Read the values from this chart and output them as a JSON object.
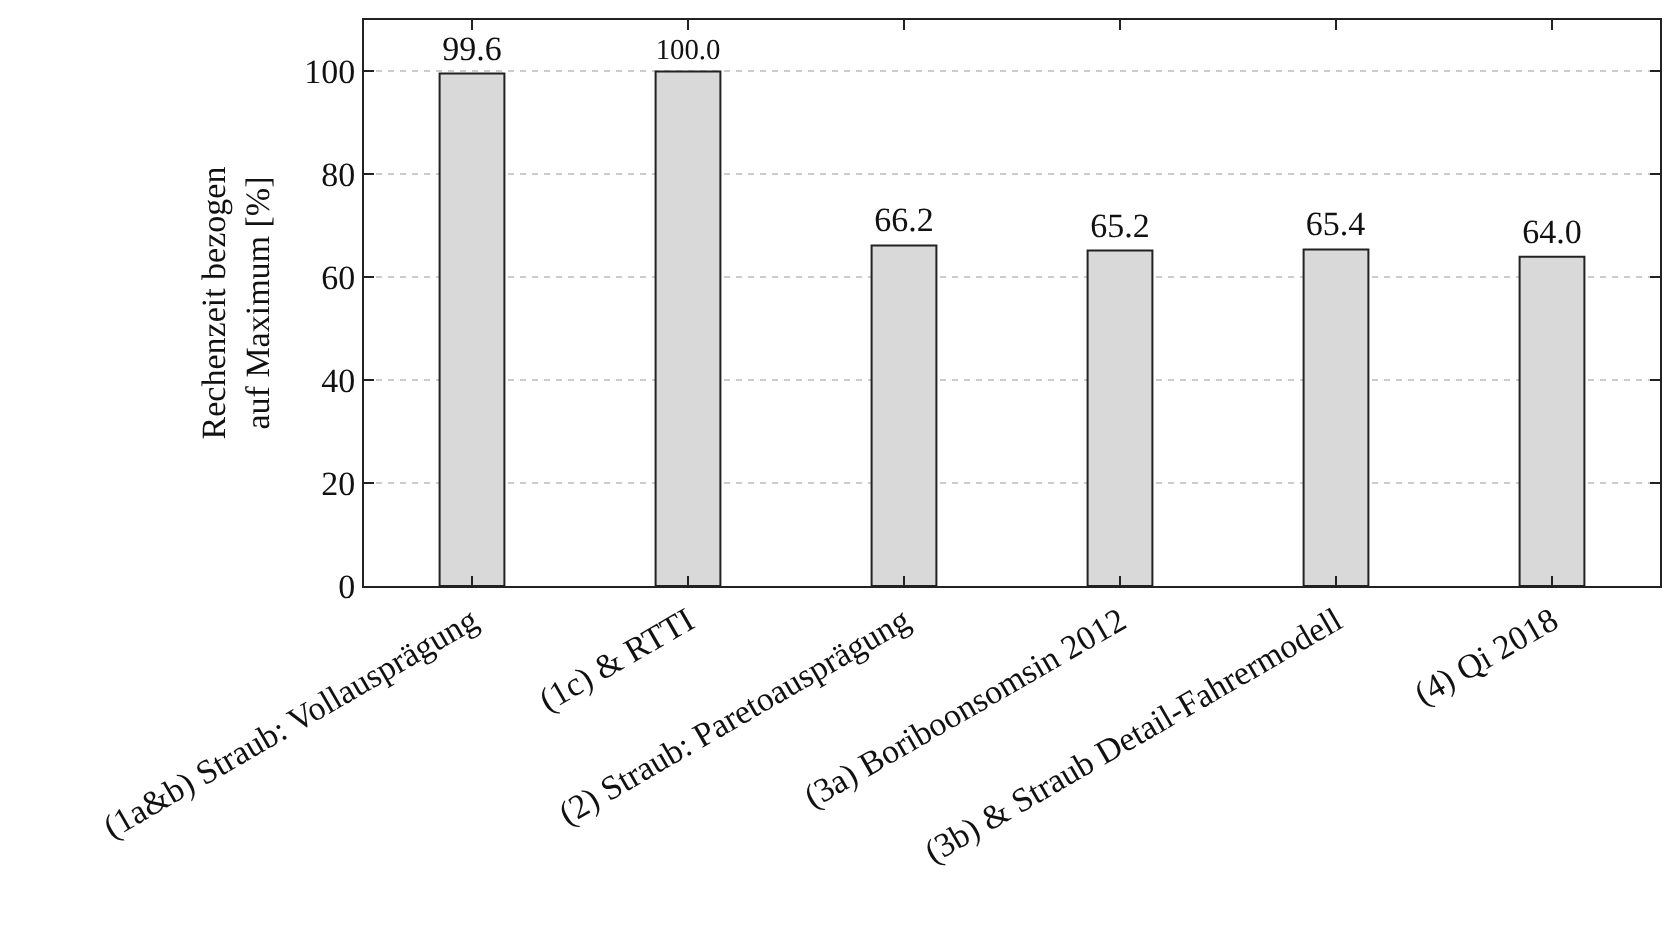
{
  "chart_data": {
    "type": "bar",
    "ylabel": "Rechenzeit bezogen\nauf Maximum [%]",
    "categories": [
      "(1a&b) Straub: Vollausprägung",
      "(1c) & RTTI",
      "(2) Straub: Paretoausprägung",
      "(3a) Boriboonsomsin 2012",
      "(3b) & Straub Detail-Fahrermodell",
      "(4) Qi 2018"
    ],
    "values": [
      99.6,
      100.0,
      66.2,
      65.2,
      65.4,
      64.0
    ],
    "color": "#d9d9d9",
    "ylim": [
      0,
      110
    ],
    "yticks": [
      0,
      20,
      40,
      60,
      80,
      100
    ],
    "grid": "y",
    "value_labels": [
      "99.6",
      "100.0",
      "66.2",
      "65.2",
      "65.4",
      "64.0"
    ]
  }
}
